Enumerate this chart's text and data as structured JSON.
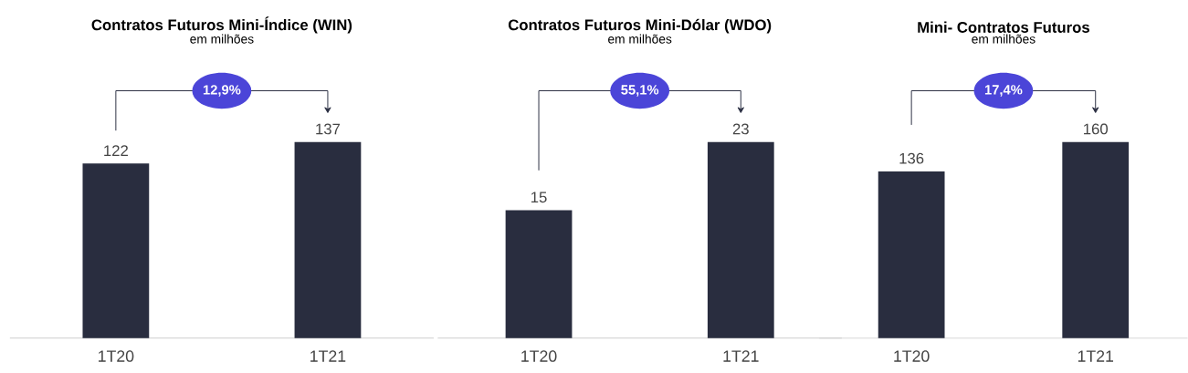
{
  "chart_data": [
    {
      "type": "bar",
      "title": "Contratos Futuros Mini-Índice (WIN)",
      "subtitle": "em milhões",
      "categories": [
        "1T20",
        "1T21"
      ],
      "values": [
        122,
        137
      ],
      "color": "#292d3f",
      "data_labels": true,
      "annotations": [
        "12,9%"
      ]
    },
    {
      "type": "bar",
      "title": "Contratos Futuros Mini-Dólar (WDO)",
      "subtitle": "em milhões",
      "categories": [
        "1T20",
        "1T21"
      ],
      "values": [
        15,
        23
      ],
      "color": "#292d3f",
      "data_labels": true,
      "annotations": [
        "55,1%"
      ]
    },
    {
      "type": "bar",
      "title": "Mini- Contratos Futuros",
      "subtitle": "em milhões",
      "categories": [
        "1T20",
        "1T21"
      ],
      "values": [
        136,
        160
      ],
      "color": "#292d3f",
      "data_labels": true,
      "annotations": [
        "17,4%"
      ]
    }
  ]
}
